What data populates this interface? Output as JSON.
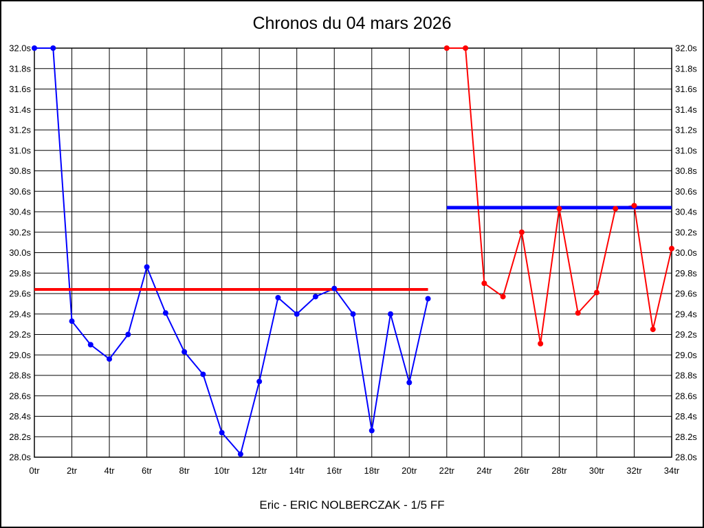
{
  "title": "Chronos du 04 mars 2026",
  "caption": "Eric - ERIC NOLBERCZAK - 1/5 FF",
  "colors": {
    "background": "#ffffff",
    "frame": "#000000",
    "grid": "#000000",
    "series_1": "#0000ff",
    "series_2": "#ff0000",
    "avg_line_1": "#ff0000",
    "avg_line_2": "#0000ff"
  },
  "chart_data": {
    "type": "line",
    "title": "Chronos du 04 mars 2026",
    "xlabel": "",
    "ylabel": "",
    "x_unit": "tr",
    "y_unit": "s",
    "xlim": [
      0,
      34
    ],
    "ylim": [
      28.0,
      32.0
    ],
    "grid": true,
    "legend_position": "none",
    "x_ticks": [
      0,
      2,
      4,
      6,
      8,
      10,
      12,
      14,
      16,
      18,
      20,
      22,
      24,
      26,
      28,
      30,
      32,
      34
    ],
    "x_tick_labels": [
      "0tr",
      "2tr",
      "4tr",
      "6tr",
      "8tr",
      "10tr",
      "12tr",
      "14tr",
      "16tr",
      "18tr",
      "20tr",
      "22tr",
      "24tr",
      "26tr",
      "28tr",
      "30tr",
      "32tr",
      "34tr"
    ],
    "y_ticks": [
      32.0,
      31.8,
      31.6,
      31.4,
      31.2,
      31.0,
      30.8,
      30.6,
      30.4,
      30.2,
      30.0,
      29.8,
      29.6,
      29.4,
      29.2,
      29.0,
      28.8,
      28.6,
      28.4,
      28.2,
      28.0
    ],
    "y_tick_labels": [
      "32.0s",
      "31.8s",
      "31.6s",
      "31.4s",
      "31.2s",
      "31.0s",
      "30.8s",
      "30.6s",
      "30.4s",
      "30.2s",
      "30.0s",
      "29.8s",
      "29.6s",
      "29.4s",
      "29.2s",
      "29.0s",
      "28.8s",
      "28.6s",
      "28.4s",
      "28.2s",
      "28.0s"
    ],
    "y_axis_labels_on_both_sides": true,
    "series": [
      {
        "name": "session-1-blue",
        "color": "#0000ff",
        "x": [
          0,
          1,
          2,
          3,
          4,
          5,
          6,
          7,
          8,
          9,
          10,
          11,
          12,
          13,
          14,
          15,
          16,
          17,
          18,
          19,
          20,
          21
        ],
        "values": [
          32.0,
          32.0,
          29.33,
          29.1,
          28.96,
          29.2,
          29.86,
          29.41,
          29.03,
          28.81,
          28.24,
          28.03,
          28.74,
          29.56,
          29.4,
          29.57,
          29.65,
          29.4,
          28.26,
          29.4,
          28.73,
          29.55
        ]
      },
      {
        "name": "session-2-red",
        "color": "#ff0000",
        "x": [
          22,
          23,
          24,
          25,
          26,
          27,
          28,
          29,
          30,
          31,
          32,
          33,
          34
        ],
        "values": [
          32.0,
          32.0,
          29.7,
          29.57,
          30.2,
          29.11,
          30.43,
          29.41,
          29.61,
          30.43,
          30.46,
          29.25,
          30.04
        ]
      }
    ],
    "reference_lines": [
      {
        "name": "average-session-1",
        "color": "#ff0000",
        "value": 29.64,
        "x_start": 0,
        "x_end": 21,
        "thickness": 4
      },
      {
        "name": "average-session-2",
        "color": "#0000ff",
        "value": 30.44,
        "x_start": 22,
        "x_end": 34,
        "thickness": 5
      }
    ]
  }
}
